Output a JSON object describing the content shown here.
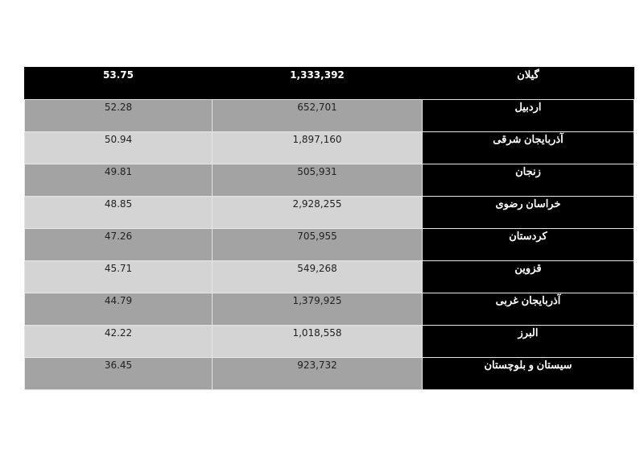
{
  "table": {
    "rows": [
      {
        "percent": "53.75",
        "population": "1,333,392",
        "province": "گیلان"
      },
      {
        "percent": "52.28",
        "population": "652,701",
        "province": "اردبیل"
      },
      {
        "percent": "50.94",
        "population": "1,897,160",
        "province": "آذربایجان شرقی"
      },
      {
        "percent": "49.81",
        "population": "505,931",
        "province": "زنجان"
      },
      {
        "percent": "48.85",
        "population": "2,928,255",
        "province": "خراسان رضوی"
      },
      {
        "percent": "47.26",
        "population": "705,955",
        "province": "کردستان"
      },
      {
        "percent": "45.71",
        "population": "549,268",
        "province": "قزوین"
      },
      {
        "percent": "44.79",
        "population": "1,379,925",
        "province": "آذربایجان غربی"
      },
      {
        "percent": "42.22",
        "population": "1,018,558",
        "province": "البرز"
      },
      {
        "percent": "36.45",
        "population": "923,732",
        "province": "سیستان و بلوچستان"
      }
    ]
  },
  "colors": {
    "header": "#000000",
    "row_dark": "#a3a3a3",
    "row_light": "#d4d4d4",
    "province_column": "#000000"
  }
}
